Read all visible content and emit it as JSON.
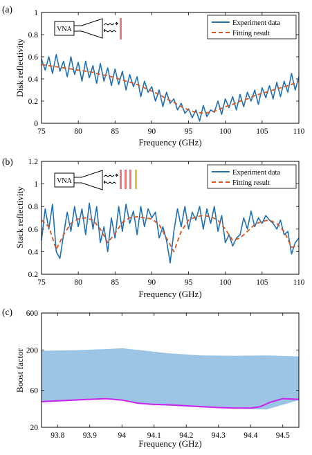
{
  "colors": {
    "experiment": "#1f6fb5",
    "fit": "#d9541e",
    "fill": "#9cc4e4",
    "boost_line": "#cc22ee",
    "disk": "#e87b7b",
    "disk_yellow": "#e8c23a"
  },
  "chart_data": [
    {
      "panel": "(a)",
      "type": "line",
      "xlabel": "Frequency (GHz)",
      "ylabel": "Disk reflectivity",
      "xlim": [
        75,
        110
      ],
      "ylim": [
        0,
        1
      ],
      "xticks": [
        "75",
        "80",
        "85",
        "90",
        "95",
        "100",
        "105",
        "110"
      ],
      "yticks": [
        "0",
        "0.2",
        "0.4",
        "0.6",
        "0.8",
        "1"
      ],
      "legend": {
        "position": "top-right",
        "entries": [
          "Experiment data",
          "Fitting result"
        ]
      },
      "inset": {
        "label": "VNA",
        "disks": 1
      },
      "series": [
        {
          "name": "Experiment data",
          "style": "solid",
          "x": [
            75,
            75.5,
            76,
            76.5,
            77,
            77.5,
            78,
            78.5,
            79,
            79.5,
            80,
            80.5,
            81,
            81.5,
            82,
            82.5,
            83,
            83.5,
            84,
            84.5,
            85,
            85.5,
            86,
            86.5,
            87,
            87.5,
            88,
            88.5,
            89,
            89.5,
            90,
            90.5,
            91,
            91.5,
            92,
            92.5,
            93,
            93.5,
            94,
            94.5,
            95,
            95.5,
            96,
            96.5,
            97,
            97.5,
            98,
            98.5,
            99,
            99.5,
            100,
            100.5,
            101,
            101.5,
            102,
            102.5,
            103,
            103.5,
            104,
            104.5,
            105,
            105.5,
            106,
            106.5,
            107,
            107.5,
            108,
            108.5,
            109,
            109.5,
            110
          ],
          "y": [
            0.58,
            0.48,
            0.6,
            0.45,
            0.62,
            0.47,
            0.56,
            0.42,
            0.6,
            0.44,
            0.55,
            0.38,
            0.56,
            0.41,
            0.52,
            0.36,
            0.54,
            0.38,
            0.5,
            0.34,
            0.49,
            0.35,
            0.47,
            0.3,
            0.44,
            0.33,
            0.42,
            0.24,
            0.38,
            0.28,
            0.33,
            0.2,
            0.3,
            0.15,
            0.28,
            0.18,
            0.22,
            0.12,
            0.18,
            0.09,
            0.13,
            0.05,
            0.12,
            0.02,
            0.16,
            0.06,
            0.12,
            0.1,
            0.2,
            0.08,
            0.22,
            0.14,
            0.24,
            0.12,
            0.26,
            0.15,
            0.28,
            0.2,
            0.3,
            0.17,
            0.32,
            0.23,
            0.34,
            0.22,
            0.37,
            0.24,
            0.38,
            0.28,
            0.45,
            0.3,
            0.42
          ]
        },
        {
          "name": "Fitting result",
          "style": "dashed",
          "x": [
            75,
            76,
            77,
            78,
            79,
            80,
            81,
            82,
            83,
            84,
            85,
            86,
            87,
            88,
            89,
            90,
            91,
            92,
            93,
            94,
            95,
            96,
            97,
            98,
            99,
            100,
            101,
            102,
            103,
            104,
            105,
            106,
            107,
            108,
            109,
            110
          ],
          "y": [
            0.53,
            0.52,
            0.51,
            0.5,
            0.49,
            0.48,
            0.47,
            0.46,
            0.44,
            0.43,
            0.41,
            0.39,
            0.37,
            0.35,
            0.32,
            0.29,
            0.26,
            0.22,
            0.19,
            0.15,
            0.12,
            0.1,
            0.09,
            0.1,
            0.12,
            0.15,
            0.17,
            0.2,
            0.22,
            0.25,
            0.27,
            0.29,
            0.31,
            0.33,
            0.35,
            0.38
          ]
        }
      ]
    },
    {
      "panel": "(b)",
      "type": "line",
      "xlabel": "Frequency (GHz)",
      "ylabel": "Stack reflectivity",
      "xlim": [
        75,
        110
      ],
      "ylim": [
        0.2,
        1.2
      ],
      "xticks": [
        "75",
        "80",
        "85",
        "90",
        "95",
        "100",
        "105",
        "110"
      ],
      "yticks": [
        "0.2",
        "0.4",
        "0.6",
        "0.8",
        "1",
        "1.2"
      ],
      "legend": {
        "position": "top-right",
        "entries": [
          "Experiment data",
          "Fitting result"
        ]
      },
      "inset": {
        "label": "VNA",
        "disks": 4
      },
      "series": [
        {
          "name": "Experiment data",
          "style": "solid",
          "x": [
            75,
            75.5,
            76,
            76.5,
            77,
            77.5,
            78,
            78.5,
            79,
            79.5,
            80,
            80.5,
            81,
            81.5,
            82,
            82.5,
            83,
            83.5,
            84,
            84.5,
            85,
            85.5,
            86,
            86.5,
            87,
            87.5,
            88,
            88.5,
            89,
            89.5,
            90,
            90.5,
            91,
            91.5,
            92,
            92.5,
            93,
            93.5,
            94,
            94.5,
            95,
            95.5,
            96,
            96.5,
            97,
            97.5,
            98,
            98.5,
            99,
            99.5,
            100,
            100.5,
            101,
            101.5,
            102,
            102.5,
            103,
            103.5,
            104,
            104.5,
            105,
            105.5,
            106,
            106.5,
            107,
            107.5,
            108,
            108.5,
            109,
            109.5,
            110
          ],
          "y": [
            0.5,
            0.78,
            0.6,
            0.82,
            0.4,
            0.34,
            0.55,
            0.75,
            0.58,
            0.8,
            0.62,
            0.78,
            0.55,
            0.83,
            0.6,
            0.8,
            0.48,
            0.62,
            0.4,
            0.7,
            0.52,
            0.8,
            0.58,
            0.82,
            0.65,
            0.76,
            0.55,
            0.8,
            0.62,
            0.78,
            0.7,
            0.75,
            0.52,
            0.62,
            0.5,
            0.3,
            0.58,
            0.78,
            0.62,
            0.8,
            0.6,
            0.75,
            0.68,
            0.8,
            0.6,
            0.78,
            0.65,
            0.8,
            0.58,
            0.72,
            0.48,
            0.55,
            0.45,
            0.52,
            0.55,
            0.7,
            0.6,
            0.76,
            0.62,
            0.7,
            0.65,
            0.72,
            0.68,
            0.65,
            0.6,
            0.68,
            0.55,
            0.58,
            0.38,
            0.48,
            0.52
          ]
        },
        {
          "name": "Fitting result",
          "style": "dashed",
          "x": [
            75,
            76,
            77,
            78,
            79,
            80,
            81,
            82,
            83,
            84,
            85,
            86,
            87,
            88,
            89,
            90,
            91,
            92,
            93,
            94,
            95,
            96,
            97,
            98,
            99,
            100,
            101,
            102,
            103,
            104,
            105,
            106,
            107,
            108,
            109,
            110
          ],
          "y": [
            0.68,
            0.62,
            0.42,
            0.55,
            0.65,
            0.69,
            0.7,
            0.68,
            0.6,
            0.48,
            0.56,
            0.66,
            0.7,
            0.71,
            0.7,
            0.69,
            0.64,
            0.52,
            0.4,
            0.58,
            0.68,
            0.71,
            0.72,
            0.71,
            0.68,
            0.6,
            0.5,
            0.52,
            0.58,
            0.64,
            0.67,
            0.68,
            0.65,
            0.58,
            0.44,
            0.45
          ]
        }
      ]
    },
    {
      "panel": "(c)",
      "type": "area",
      "xlabel": "Frequency (GHz)",
      "ylabel": "Boost factor",
      "scale_y": "log",
      "xlim": [
        93.75,
        94.55
      ],
      "ylim": [
        20,
        600
      ],
      "xticks": [
        "93.8",
        "93.9",
        "94",
        "94.1",
        "94.2",
        "94.3",
        "94.4",
        "94.5"
      ],
      "yticks": [
        "20",
        "60",
        "200",
        "600"
      ],
      "series": [
        {
          "style": "filled",
          "x": [
            93.75,
            93.85,
            93.95,
            94.0,
            94.05,
            94.15,
            94.25,
            94.35,
            94.45,
            94.55
          ],
          "upper": [
            195,
            198,
            205,
            210,
            200,
            180,
            170,
            168,
            170,
            165
          ],
          "lower": [
            42,
            44,
            48,
            45,
            40,
            38,
            36,
            35,
            34,
            45
          ]
        },
        {
          "style": "solid",
          "x": [
            93.75,
            93.8,
            93.85,
            93.9,
            93.95,
            94.0,
            94.05,
            94.1,
            94.15,
            94.2,
            94.25,
            94.3,
            94.35,
            94.4,
            94.43,
            94.46,
            94.5,
            94.55
          ],
          "y": [
            43,
            44,
            45,
            46,
            47,
            45,
            41,
            39.5,
            39,
            38,
            37,
            36,
            35.5,
            35.5,
            37,
            42,
            47,
            46
          ]
        }
      ]
    }
  ]
}
